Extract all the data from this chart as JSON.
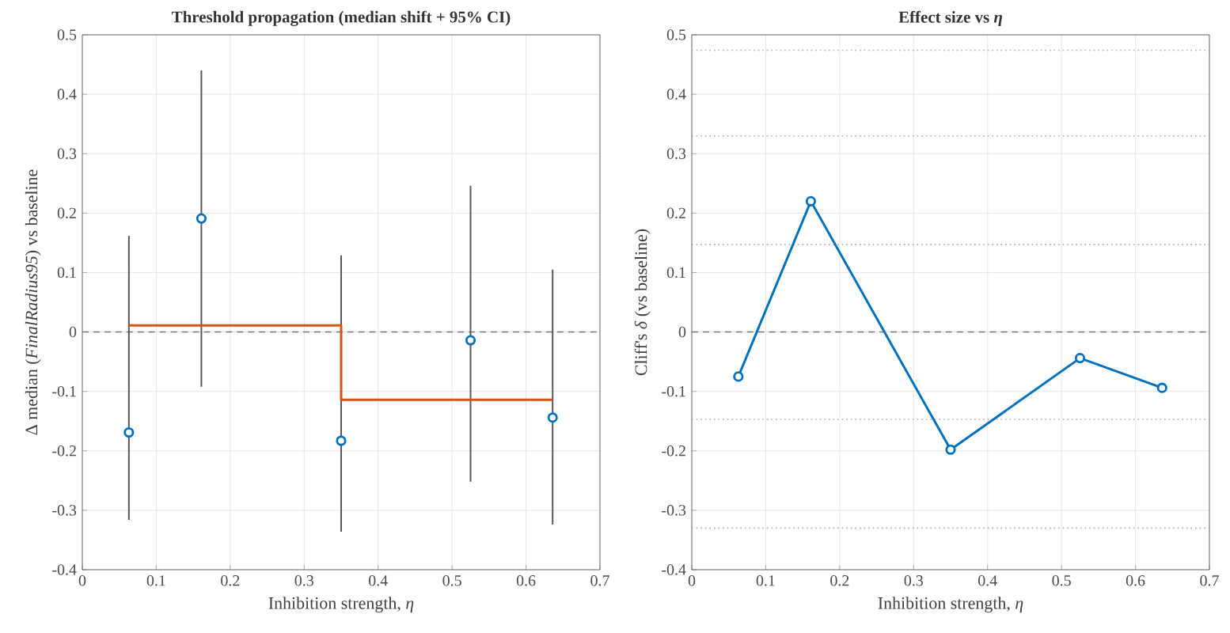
{
  "chart_data": [
    {
      "type": "scatter",
      "title": "Threshold propagation (median shift + 95% CI)",
      "xlabel": "Inhibition strength, *η*",
      "ylabel": "Δ median (*FinalRadius95*) vs baseline",
      "x": [
        0.063,
        0.161,
        0.35,
        0.525,
        0.636
      ],
      "series": [
        {
          "type": "scatter",
          "color": "#0072bd",
          "marker": "circle",
          "values": [
            -0.169,
            0.191,
            -0.183,
            -0.014,
            -0.144
          ],
          "errors": [
            [
              -0.316,
              0.162
            ],
            [
              -0.092,
              0.44
            ],
            [
              -0.336,
              0.129
            ],
            [
              -0.252,
              0.246
            ],
            [
              -0.324,
              0.105
            ]
          ]
        },
        {
          "type": "line",
          "color": "#d95319",
          "marker": "none",
          "x": [
            0.063,
            0.35,
            0.35,
            0.636
          ],
          "values": [
            0.011,
            0.011,
            -0.114,
            -0.114
          ]
        }
      ],
      "xlim": [
        0,
        0.7
      ],
      "ylim": [
        -0.4,
        0.5
      ],
      "xticks": [
        0,
        0.1,
        0.2,
        0.3,
        0.4,
        0.5,
        0.6,
        0.7
      ],
      "yticks": [
        -0.4,
        -0.3,
        -0.2,
        -0.1,
        0,
        0.1,
        0.2,
        0.3,
        0.4,
        0.5
      ],
      "grid": true,
      "ref_lines": [
        {
          "axis": "y",
          "value": 0,
          "color": "#777777",
          "line_style": "dashed"
        }
      ]
    },
    {
      "type": "line",
      "title": "Effect size vs *η*",
      "xlabel": "Inhibition strength, *η*",
      "ylabel": "Cliff's *δ* (vs baseline)",
      "x": [
        0.063,
        0.161,
        0.35,
        0.525,
        0.636
      ],
      "series": [
        {
          "color": "#0072bd",
          "values": [
            -0.075,
            0.22,
            -0.198,
            -0.044,
            -0.094
          ]
        }
      ],
      "marker": "circle",
      "xlim": [
        0,
        0.7
      ],
      "ylim": [
        -0.4,
        0.5
      ],
      "xticks": [
        0,
        0.1,
        0.2,
        0.3,
        0.4,
        0.5,
        0.6,
        0.7
      ],
      "yticks": [
        -0.4,
        -0.3,
        -0.2,
        -0.1,
        0,
        0.1,
        0.2,
        0.3,
        0.4,
        0.5
      ],
      "grid": true,
      "ref_lines": [
        {
          "axis": "y",
          "value": 0,
          "color": "#777777",
          "line_style": "dashed"
        },
        {
          "axis": "y",
          "value": 0.147,
          "color": "#aaaaaa",
          "line_style": "dotted"
        },
        {
          "axis": "y",
          "value": -0.147,
          "color": "#aaaaaa",
          "line_style": "dotted"
        },
        {
          "axis": "y",
          "value": 0.33,
          "color": "#aaaaaa",
          "line_style": "dotted"
        },
        {
          "axis": "y",
          "value": -0.33,
          "color": "#aaaaaa",
          "line_style": "dotted"
        },
        {
          "axis": "y",
          "value": 0.474,
          "color": "#aaaaaa",
          "line_style": "dotted"
        }
      ]
    }
  ]
}
